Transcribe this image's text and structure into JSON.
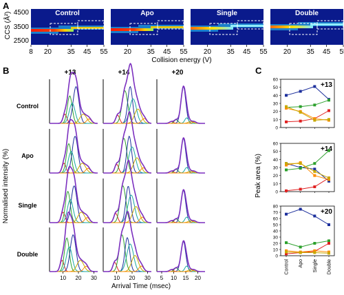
{
  "panel_labels": {
    "a": "A",
    "b": "B",
    "c": "C"
  },
  "colors": {
    "heat_bg": "#0a1a8c",
    "heat_band": "#ff2a00",
    "heat_band_mid": "#ffee00",
    "heat_halo": "#29d3ff",
    "envelope": "#7b2fbf",
    "navy": "#1c2f9c",
    "green": "#2ca02c",
    "red": "#e02020",
    "orange": "#ff8c00",
    "gold": "#c8a800",
    "teal": "#17a8a0"
  },
  "panelA": {
    "ylabel": "CCS (Å²)",
    "xlabel": "Collision energy (V)",
    "yticks": [
      "4500",
      "3500",
      "2500"
    ],
    "xticks": [
      "8",
      "20",
      "35",
      "45",
      "55"
    ],
    "maps": [
      {
        "title": "Control",
        "xticks": [
          "8",
          "20",
          "35",
          "45",
          "55"
        ]
      },
      {
        "title": "Apo",
        "xticks": [
          "20",
          "35",
          "45",
          "55"
        ]
      },
      {
        "title": "Single",
        "xticks": [
          "20",
          "35",
          "45",
          "55"
        ]
      },
      {
        "title": "Double",
        "xticks": [
          "20",
          "35",
          "45",
          "55"
        ]
      }
    ]
  },
  "panelB": {
    "ylabel": "Normalised intensity (%)",
    "xlabel": "Arrival Time (msec)",
    "columns": [
      "+13",
      "+14",
      "+20"
    ],
    "rows": [
      "Control",
      "Apo",
      "Single",
      "Double"
    ],
    "xticks": [
      [
        "10",
        "20",
        "30"
      ],
      [
        "10",
        "20",
        "30"
      ],
      [
        "5",
        "10",
        "15",
        "20"
      ]
    ]
  },
  "chart_data": {
    "type": "line",
    "ylabel": "Peak area (%)",
    "categories": [
      "Control",
      "Apo",
      "Single",
      "Double"
    ],
    "panels": [
      {
        "title": "+13",
        "yticks": [
          "0",
          "10",
          "20",
          "30",
          "40",
          "50",
          "60"
        ],
        "ylim": [
          0,
          60
        ],
        "series": [
          {
            "color": "#1c2f9c",
            "values": [
              40,
              45,
              51,
              35
            ]
          },
          {
            "color": "#2ca02c",
            "values": [
              25,
              26,
              28,
              34
            ]
          },
          {
            "color": "#e02020",
            "values": [
              7,
              8,
              11,
              21
            ]
          },
          {
            "color": "#ff8c00",
            "values": [
              24,
              20,
              11,
              9
            ]
          },
          {
            "color": "#c8a800",
            "values": [
              26,
              19,
              9,
              10
            ]
          }
        ]
      },
      {
        "title": "+14",
        "yticks": [
          "0",
          "10",
          "20",
          "30",
          "40",
          "50",
          "60"
        ],
        "ylim": [
          0,
          60
        ],
        "series": [
          {
            "color": "#1c2f9c",
            "values": [
              35,
              30,
              28,
              13
            ]
          },
          {
            "color": "#2ca02c",
            "values": [
              27,
              29,
              35,
              51
            ]
          },
          {
            "color": "#e02020",
            "values": [
              1,
              3,
              6,
              17
            ]
          },
          {
            "color": "#ff8c00",
            "values": [
              33,
              36,
              20,
              15
            ]
          },
          {
            "color": "#c8a800",
            "values": [
              35,
              35,
              25,
              17
            ]
          }
        ]
      },
      {
        "title": "+20",
        "yticks": [
          "0",
          "10",
          "20",
          "30",
          "40",
          "50",
          "60",
          "70",
          "80"
        ],
        "ylim": [
          0,
          80
        ],
        "series": [
          {
            "color": "#1c2f9c",
            "values": [
              67,
              75,
              64,
              50
            ]
          },
          {
            "color": "#2ca02c",
            "values": [
              21,
              14,
              20,
              24
            ]
          },
          {
            "color": "#e02020",
            "values": [
              3,
              5,
              7,
              20
            ]
          },
          {
            "color": "#ff8c00",
            "values": [
              8,
              6,
              8,
              6
            ]
          },
          {
            "color": "#c8a800",
            "values": [
              6,
              5,
              5,
              4
            ]
          }
        ]
      }
    ]
  }
}
